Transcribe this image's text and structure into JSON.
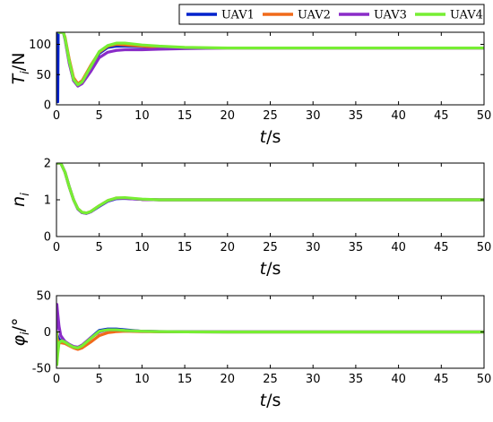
{
  "legend": {
    "items": [
      {
        "label": "UAV1",
        "color": "#0022cc"
      },
      {
        "label": "UAV2",
        "color": "#f06a1a"
      },
      {
        "label": "UAV3",
        "color": "#8a2cc8"
      },
      {
        "label": "UAV4",
        "color": "#77ee33"
      }
    ],
    "placement": "top-right"
  },
  "chart_data": [
    {
      "type": "line",
      "ylabel_main": "T",
      "ylabel_sub": "i",
      "ylabel_unit": "/N",
      "xlabel_main": "t",
      "xlabel_unit": "/s",
      "xlim": [
        0,
        50
      ],
      "ylim": [
        0,
        120
      ],
      "xticks": [
        "0",
        "5",
        "10",
        "15",
        "20",
        "25",
        "30",
        "35",
        "40",
        "45",
        "50"
      ],
      "yticks": [
        "0",
        "50",
        "100"
      ],
      "ytick_values": [
        0,
        50,
        100
      ],
      "grid": false,
      "series": [
        {
          "name": "UAV1",
          "x": [
            0,
            0.15,
            0.2,
            0.3,
            0.5,
            0.8,
            1.0,
            1.5,
            2.0,
            2.5,
            3.0,
            4.0,
            5.0,
            6.0,
            7.0,
            8.0,
            10.0,
            12.0,
            15.0,
            20.0,
            25.0,
            50.0
          ],
          "y": [
            5,
            5,
            118,
            120,
            120,
            120,
            110,
            70,
            40,
            33,
            38,
            62,
            85,
            95,
            97,
            97,
            96,
            95,
            94,
            94,
            94,
            94
          ]
        },
        {
          "name": "UAV2",
          "x": [
            0.3,
            0.5,
            0.8,
            1.0,
            1.5,
            2.0,
            2.5,
            3.0,
            4.0,
            5.0,
            6.0,
            7.0,
            8.0,
            10.0,
            12.0,
            15.0,
            20.0,
            25.0,
            50.0
          ],
          "y": [
            120,
            120,
            120,
            112,
            75,
            45,
            35,
            40,
            65,
            87,
            97,
            100,
            99,
            97,
            95,
            94,
            94,
            94,
            94
          ]
        },
        {
          "name": "UAV3",
          "x": [
            0.3,
            0.5,
            0.8,
            1.0,
            1.5,
            2.0,
            2.5,
            3.0,
            4.0,
            5.0,
            6.0,
            7.0,
            8.0,
            10.0,
            12.0,
            15.0,
            20.0,
            25.0,
            50.0
          ],
          "y": [
            120,
            120,
            120,
            108,
            68,
            40,
            31,
            35,
            55,
            78,
            87,
            90,
            91,
            91,
            92,
            93,
            94,
            94,
            94
          ]
        },
        {
          "name": "UAV4",
          "x": [
            0.3,
            0.5,
            0.8,
            1.0,
            1.5,
            2.0,
            2.5,
            3.0,
            4.0,
            5.0,
            6.0,
            7.0,
            8.0,
            10.0,
            12.0,
            15.0,
            20.0,
            25.0,
            50.0
          ],
          "y": [
            120,
            120,
            120,
            110,
            72,
            42,
            33,
            38,
            63,
            88,
            98,
            102,
            102,
            99,
            97,
            95,
            94,
            94,
            94
          ]
        }
      ]
    },
    {
      "type": "line",
      "ylabel_main": "n",
      "ylabel_sub": "i",
      "ylabel_unit": "",
      "xlabel_main": "t",
      "xlabel_unit": "/s",
      "xlim": [
        0,
        50
      ],
      "ylim": [
        0,
        2
      ],
      "xticks": [
        "0",
        "5",
        "10",
        "15",
        "20",
        "25",
        "30",
        "35",
        "40",
        "45",
        "50"
      ],
      "yticks": [
        "0",
        "1",
        "2"
      ],
      "ytick_values": [
        0,
        1,
        2
      ],
      "grid": false,
      "series": [
        {
          "name": "UAV1",
          "x": [
            0,
            0.5,
            1.0,
            1.5,
            2.0,
            2.5,
            3.0,
            3.5,
            4.0,
            5.0,
            6.0,
            7.0,
            8.0,
            10.0,
            12.0,
            15.0,
            50.0
          ],
          "y": [
            2,
            2,
            1.75,
            1.35,
            1.0,
            0.75,
            0.65,
            0.63,
            0.67,
            0.82,
            0.96,
            1.03,
            1.04,
            1.01,
            1.0,
            1.0,
            1.0
          ]
        },
        {
          "name": "UAV2",
          "x": [
            0,
            0.5,
            1.0,
            1.5,
            2.0,
            2.5,
            3.0,
            3.5,
            4.0,
            5.0,
            6.0,
            7.0,
            8.0,
            10.0,
            12.0,
            15.0,
            50.0
          ],
          "y": [
            2,
            2,
            1.75,
            1.35,
            1.0,
            0.76,
            0.66,
            0.64,
            0.68,
            0.84,
            0.98,
            1.05,
            1.05,
            1.01,
            1.0,
            1.0,
            1.0
          ]
        },
        {
          "name": "UAV3",
          "x": [
            0,
            0.5,
            1.0,
            1.5,
            2.0,
            2.5,
            3.0,
            3.5,
            4.0,
            5.0,
            6.0,
            7.0,
            8.0,
            10.0,
            12.0,
            15.0,
            50.0
          ],
          "y": [
            2,
            2,
            1.75,
            1.35,
            1.0,
            0.75,
            0.65,
            0.63,
            0.67,
            0.83,
            0.97,
            1.04,
            1.04,
            1.01,
            1.0,
            1.0,
            1.0
          ]
        },
        {
          "name": "UAV4",
          "x": [
            0,
            0.5,
            1.0,
            1.5,
            2.0,
            2.5,
            3.0,
            3.5,
            4.0,
            5.0,
            6.0,
            7.0,
            8.0,
            10.0,
            12.0,
            15.0,
            50.0
          ],
          "y": [
            2,
            2,
            1.75,
            1.35,
            1.0,
            0.76,
            0.66,
            0.64,
            0.68,
            0.84,
            0.98,
            1.05,
            1.06,
            1.02,
            1.0,
            1.0,
            1.0
          ]
        }
      ]
    },
    {
      "type": "line",
      "ylabel_main": "φ",
      "ylabel_sub": "i",
      "ylabel_unit": "/°",
      "xlabel_main": "t",
      "xlabel_unit": "/s",
      "xlim": [
        0,
        50
      ],
      "ylim": [
        -50,
        50
      ],
      "xticks": [
        "0",
        "5",
        "10",
        "15",
        "20",
        "25",
        "30",
        "35",
        "40",
        "45",
        "50"
      ],
      "yticks": [
        "-50",
        "0",
        "50"
      ],
      "ytick_values": [
        -50,
        0,
        50
      ],
      "grid": false,
      "series": [
        {
          "name": "UAV1",
          "x": [
            0,
            0.1,
            0.3,
            0.6,
            1.0,
            1.5,
            2.0,
            2.5,
            3.0,
            4.0,
            5.0,
            6.0,
            7.0,
            8.0,
            10.0,
            12.0,
            15.0,
            20.0,
            50.0
          ],
          "y": [
            0,
            -5,
            -10,
            -12,
            -14,
            -18,
            -21,
            -22,
            -19,
            -8,
            2,
            4,
            4,
            3,
            1,
            0.5,
            0.2,
            0,
            0
          ]
        },
        {
          "name": "UAV2",
          "x": [
            0,
            0.1,
            0.3,
            0.6,
            1.0,
            1.5,
            2.0,
            2.5,
            3.0,
            4.0,
            5.0,
            6.0,
            7.0,
            8.0,
            10.0,
            12.0,
            15.0,
            20.0,
            50.0
          ],
          "y": [
            0,
            -10,
            -15,
            -15,
            -16,
            -19,
            -22,
            -24,
            -22,
            -14,
            -5,
            -1,
            0.5,
            1,
            0.5,
            0.3,
            0.1,
            0,
            0
          ]
        },
        {
          "name": "UAV3",
          "x": [
            0,
            0.05,
            0.15,
            0.3,
            0.5,
            0.8,
            1.0,
            1.5,
            2.0,
            2.5,
            3.0,
            4.0,
            5.0,
            6.0,
            7.0,
            8.0,
            10.0,
            15.0,
            50.0
          ],
          "y": [
            0,
            38,
            25,
            8,
            -5,
            -10,
            -13,
            -17,
            -20,
            -21,
            -18,
            -8,
            0,
            3,
            3,
            2,
            1,
            0.2,
            0
          ]
        },
        {
          "name": "UAV4",
          "x": [
            0,
            0.05,
            0.15,
            0.3,
            0.6,
            1.0,
            1.5,
            2.0,
            2.5,
            3.0,
            4.0,
            5.0,
            6.0,
            7.0,
            8.0,
            10.0,
            12.0,
            15.0,
            20.0,
            50.0
          ],
          "y": [
            0,
            -45,
            -30,
            -15,
            -12,
            -14,
            -18,
            -21,
            -22,
            -19,
            -9,
            1,
            3,
            3,
            2,
            1,
            0.5,
            0.2,
            0,
            0
          ]
        }
      ]
    }
  ]
}
